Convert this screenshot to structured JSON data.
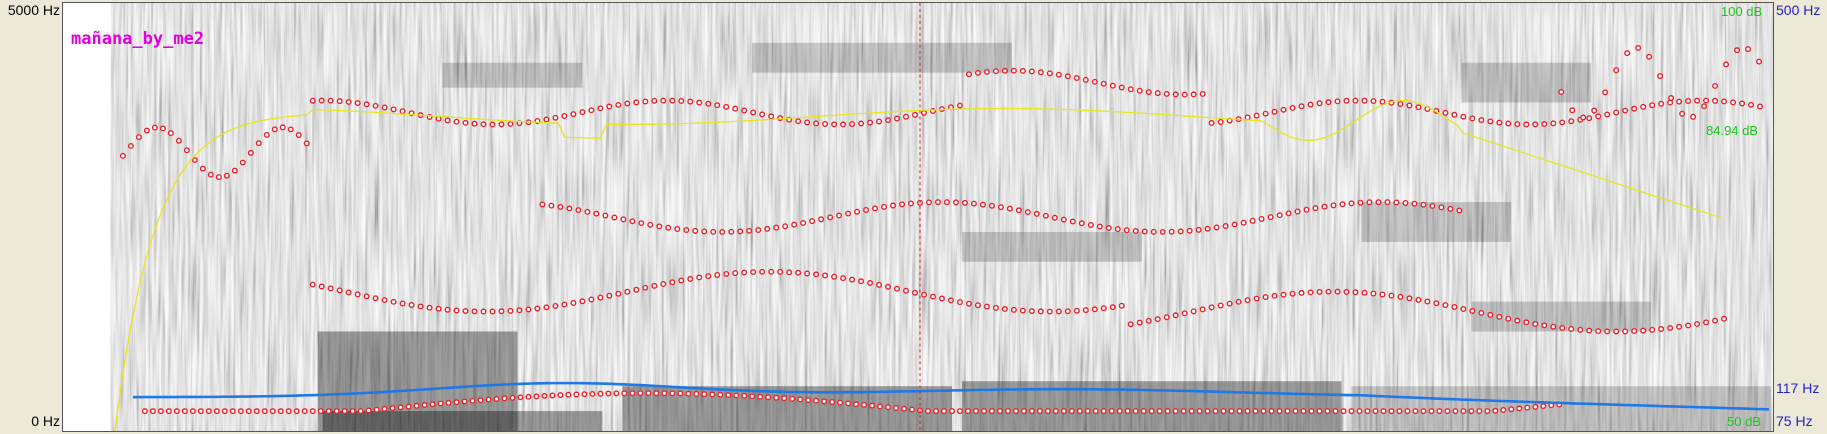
{
  "window": {
    "file_label": "mañana_by_me2"
  },
  "left_axis": {
    "top_label": "5000 Hz",
    "bottom_label": "0 Hz"
  },
  "right_axis": {
    "pitch_top": "500 Hz",
    "pitch_mid": "117 Hz",
    "pitch_bottom": "75 Hz",
    "intensity_top": "100 dB",
    "intensity_cursor": "84.94 dB",
    "intensity_bottom": "50 dB"
  },
  "colors": {
    "formant": "#e8202a",
    "pitch": "#1f78e6",
    "intensity": "#e6e61a",
    "cursor": "#d02020",
    "title": "#e000e0",
    "db_label": "#19c819",
    "hz_label": "#2323c8"
  }
}
